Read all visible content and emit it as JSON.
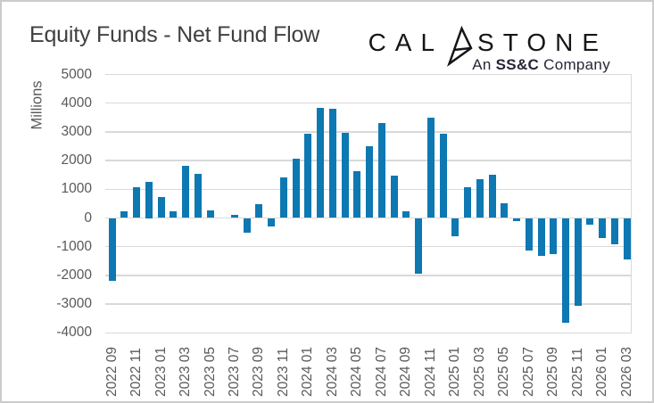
{
  "header": {
    "title": "Equity Funds - Net Fund Flow"
  },
  "logo": {
    "brand_prefix": "CAL",
    "brand_suffix": "STONE",
    "glyph": "calastone-a-glyph",
    "subtitle_prefix": "An ",
    "subtitle_bold": "SS&C",
    "subtitle_suffix": " Company"
  },
  "chart_data": {
    "type": "bar",
    "title": "Equity Funds - Net Fund Flow",
    "ylabel": "Millions",
    "ylim": [
      -4000,
      5000
    ],
    "ytick_step": 1000,
    "grid": true,
    "bar_color": "#0d78b2",
    "x_label_every": 2,
    "categories": [
      "2022 09",
      "2022 10",
      "2022 11",
      "2022 12",
      "2023 01",
      "2023 02",
      "2023 03",
      "2023 04",
      "2023 05",
      "2023 06",
      "2023 07",
      "2023 08",
      "2023 09",
      "2023 10",
      "2023 11",
      "2023 12",
      "2024 01",
      "2024 02",
      "2024 03",
      "2024 04",
      "2024 05",
      "2024 06",
      "2024 07",
      "2024 08",
      "2024 09",
      "2024 10",
      "2024 11",
      "2024 12",
      "2025 01",
      "2025 02",
      "2025 03",
      "2025 04",
      "2025 05",
      "2025 06",
      "2025 07",
      "2025 08",
      "2025 09",
      "2025 10",
      "2025 11",
      "2025 12",
      "2026 01",
      "2026 02",
      "2026 03"
    ],
    "values": [
      -2180,
      220,
      1060,
      1250,
      720,
      220,
      1830,
      1550,
      250,
      0,
      100,
      -500,
      490,
      -310,
      1400,
      2080,
      2950,
      3850,
      3800,
      2980,
      1640,
      2510,
      3300,
      1460,
      240,
      -1930,
      3480,
      2920,
      -650,
      1060,
      1350,
      1510,
      510,
      -120,
      -1130,
      -1330,
      -1250,
      -3650,
      -3050,
      -220,
      -700,
      -920,
      -1450
    ]
  }
}
